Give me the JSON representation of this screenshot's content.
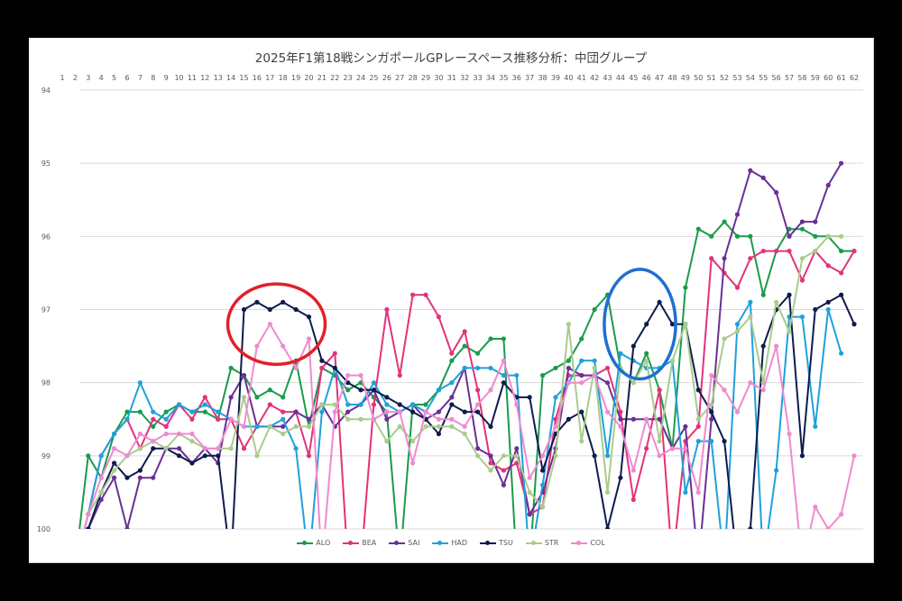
{
  "chart_data": {
    "type": "line",
    "title": "2025年F1第18戦シンガポールGPレースペース推移分析：中団グループ",
    "xlabel": "",
    "ylabel": "",
    "x": [
      1,
      2,
      3,
      4,
      5,
      6,
      7,
      8,
      9,
      10,
      11,
      12,
      13,
      14,
      15,
      16,
      17,
      18,
      19,
      20,
      21,
      22,
      23,
      24,
      25,
      26,
      27,
      28,
      29,
      30,
      31,
      32,
      33,
      34,
      35,
      36,
      37,
      38,
      39,
      40,
      41,
      42,
      43,
      44,
      45,
      46,
      47,
      48,
      49,
      50,
      51,
      52,
      53,
      54,
      55,
      56,
      57,
      58,
      59,
      60,
      61,
      62
    ],
    "x_axis_position": "top",
    "y_axis_reversed": true,
    "ylim": [
      94,
      100
    ],
    "yticks": [
      94,
      95,
      96,
      97,
      98,
      99,
      100
    ],
    "grid": true,
    "legend_position": "bottom",
    "note": "Values > 100 are clipped at the bottom edge of the plot; null means no data shown.",
    "series": [
      {
        "name": "ALO",
        "color": "#1a9b4b",
        "values": [
          null,
          101,
          99.0,
          99.3,
          98.7,
          98.4,
          98.4,
          98.6,
          98.4,
          98.3,
          98.4,
          98.4,
          98.5,
          97.8,
          97.9,
          98.2,
          98.1,
          98.2,
          97.7,
          98.6,
          97.8,
          97.9,
          98.1,
          98.0,
          98.2,
          98.4,
          101,
          98.3,
          98.3,
          98.1,
          97.7,
          97.5,
          97.6,
          97.4,
          97.4,
          101,
          101,
          97.9,
          97.8,
          97.7,
          97.4,
          97.0,
          96.8,
          97.8,
          98.0,
          97.6,
          98.1,
          98.9,
          96.7,
          95.9,
          96.0,
          95.8,
          96.0,
          96.0,
          96.8,
          96.2,
          95.9,
          95.9,
          96.0,
          96.0,
          96.2,
          96.2
        ]
      },
      {
        "name": "BEA",
        "color": "#e3327b",
        "values": [
          null,
          101,
          99.8,
          99.0,
          98.7,
          98.5,
          98.9,
          98.5,
          98.6,
          98.3,
          98.5,
          98.2,
          98.5,
          98.5,
          98.9,
          98.6,
          98.3,
          98.4,
          98.4,
          99.0,
          97.8,
          97.6,
          101,
          101,
          98.3,
          97.0,
          97.9,
          96.8,
          96.8,
          97.1,
          97.6,
          97.3,
          98.1,
          99.1,
          99.2,
          99.1,
          99.8,
          99.7,
          98.5,
          97.9,
          97.9,
          97.9,
          97.8,
          98.4,
          99.6,
          98.9,
          98.1,
          101,
          98.8,
          98.6,
          96.3,
          96.5,
          96.7,
          96.3,
          96.2,
          96.2,
          96.2,
          96.6,
          96.2,
          96.4,
          96.5,
          96.2
        ]
      },
      {
        "name": "SAI",
        "color": "#6a3096",
        "values": [
          null,
          101,
          100.0,
          99.6,
          99.3,
          100.0,
          99.3,
          99.3,
          98.9,
          98.9,
          99.1,
          98.9,
          99.1,
          98.2,
          97.9,
          98.6,
          98.6,
          98.6,
          98.4,
          98.5,
          98.3,
          98.6,
          98.4,
          98.3,
          98.1,
          98.5,
          98.4,
          98.3,
          98.5,
          98.4,
          98.2,
          97.8,
          98.9,
          99.0,
          99.4,
          98.9,
          99.8,
          99.5,
          98.9,
          97.8,
          97.9,
          97.9,
          98.0,
          98.5,
          98.5,
          98.5,
          98.5,
          98.9,
          98.6,
          101,
          98.5,
          96.3,
          95.7,
          95.1,
          95.2,
          95.4,
          96.0,
          95.8,
          95.8,
          95.3,
          95.0,
          null
        ]
      },
      {
        "name": "HAD",
        "color": "#1ea1dc",
        "values": [
          null,
          101,
          99.8,
          99.0,
          98.7,
          98.5,
          98.0,
          98.4,
          98.5,
          98.3,
          98.4,
          98.3,
          98.4,
          98.5,
          98.6,
          98.6,
          98.6,
          98.5,
          98.9,
          101,
          98.4,
          97.8,
          98.3,
          98.3,
          98.0,
          98.3,
          98.4,
          98.3,
          98.4,
          98.1,
          98.0,
          97.8,
          97.8,
          97.8,
          97.9,
          97.9,
          101,
          99.4,
          98.2,
          98.0,
          97.7,
          97.7,
          99.0,
          97.6,
          97.7,
          97.8,
          97.8,
          97.7,
          99.5,
          98.8,
          98.8,
          101,
          97.2,
          96.9,
          101,
          99.2,
          97.1,
          97.1,
          98.6,
          97.0,
          97.6,
          null
        ]
      },
      {
        "name": "TSU",
        "color": "#0e1b4d",
        "values": [
          null,
          101,
          100.0,
          99.5,
          99.1,
          99.3,
          99.2,
          98.9,
          98.9,
          99.0,
          99.1,
          99.0,
          99.0,
          101,
          97.0,
          96.9,
          97.0,
          96.9,
          97.0,
          97.1,
          97.7,
          97.8,
          98.0,
          98.1,
          98.1,
          98.2,
          98.3,
          98.4,
          98.5,
          98.7,
          98.3,
          98.4,
          98.4,
          98.6,
          98.0,
          98.2,
          98.2,
          99.2,
          98.7,
          98.5,
          98.4,
          99.0,
          100.0,
          99.3,
          97.5,
          97.2,
          96.9,
          97.2,
          97.2,
          98.1,
          98.4,
          98.8,
          101,
          100.0,
          97.5,
          97.0,
          96.8,
          99.0,
          97.0,
          96.9,
          96.8,
          97.2
        ]
      },
      {
        "name": "STR",
        "color": "#a9cc8d",
        "values": [
          null,
          101,
          99.8,
          99.5,
          99.2,
          99.0,
          98.9,
          98.8,
          98.9,
          98.7,
          98.8,
          98.9,
          98.9,
          98.9,
          98.2,
          99.0,
          98.6,
          98.7,
          98.6,
          98.6,
          98.3,
          98.3,
          98.5,
          98.5,
          98.5,
          98.8,
          98.6,
          98.8,
          98.6,
          98.6,
          98.6,
          98.7,
          99.0,
          99.2,
          99.0,
          99.0,
          99.5,
          99.7,
          99.0,
          97.2,
          98.8,
          97.8,
          99.5,
          97.8,
          98.0,
          97.7,
          98.8,
          97.7,
          97.2,
          98.5,
          98.3,
          97.4,
          97.3,
          97.1,
          98.0,
          96.9,
          97.3,
          96.3,
          96.2,
          96.0,
          96.0,
          null
        ]
      },
      {
        "name": "COL",
        "color": "#ef8ad0",
        "values": [
          null,
          101,
          99.8,
          99.3,
          98.9,
          99.0,
          98.7,
          98.8,
          98.7,
          98.7,
          98.7,
          98.9,
          98.9,
          98.5,
          98.6,
          97.5,
          97.2,
          97.5,
          97.8,
          97.4,
          101,
          98.4,
          97.9,
          97.9,
          98.5,
          98.4,
          98.4,
          99.1,
          98.4,
          98.5,
          98.5,
          98.6,
          98.3,
          98.1,
          97.7,
          98.3,
          99.3,
          99.0,
          98.6,
          98.0,
          98.0,
          97.9,
          98.4,
          98.6,
          99.2,
          98.5,
          99.0,
          98.9,
          98.9,
          99.5,
          97.9,
          98.1,
          98.4,
          98.0,
          98.1,
          97.5,
          98.7,
          101,
          99.7,
          100.0,
          99.8,
          99.0
        ]
      }
    ],
    "annotations": [
      {
        "shape": "ellipse",
        "color": "#e2202b",
        "around_laps": [
          15,
          20
        ],
        "y_range": [
          96.7,
          97.7
        ]
      },
      {
        "shape": "ellipse",
        "color": "#1f6fd1",
        "around_laps": [
          44,
          47
        ],
        "y_range": [
          96.5,
          97.9
        ]
      }
    ]
  }
}
